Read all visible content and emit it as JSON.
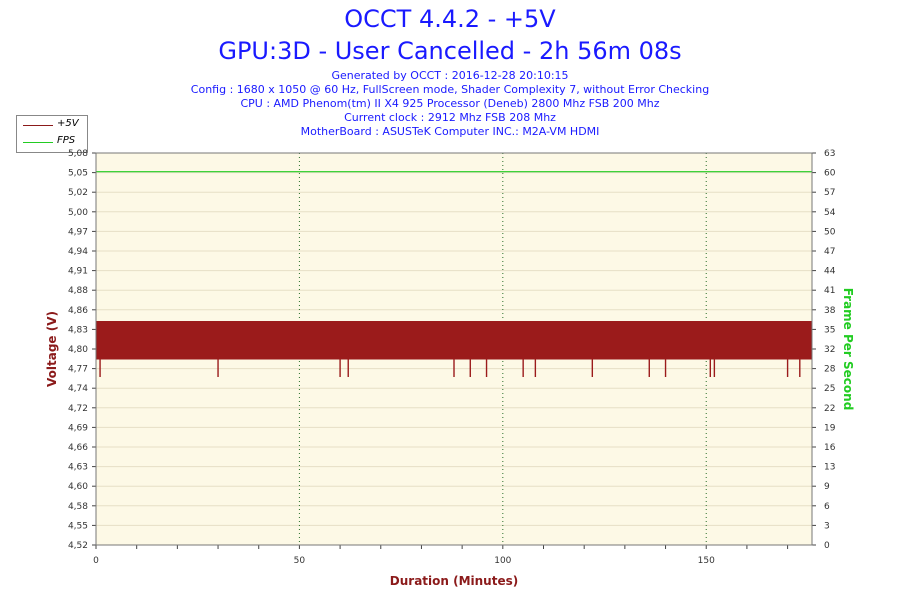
{
  "title": "OCCT 4.4.2 - +5V",
  "subtitle": "GPU:3D - User Cancelled - 2h 56m 08s",
  "info_lines": [
    "Generated by OCCT : 2016-12-28 20:10:15",
    "Config : 1680 x 1050 @ 60 Hz, FullScreen mode, Shader Complexity 7, without Error Checking",
    "CPU : AMD Phenom(tm) II X4 925 Processor (Deneb) 2800 Mhz FSB 200 Mhz",
    "Current clock : 2912 Mhz FSB 208 Mhz",
    "MotherBoard : ASUSTeK Computer INC.: M2A-VM HDMI"
  ],
  "legend": [
    {
      "label": "+5V",
      "color": "#8b1a1a"
    },
    {
      "label": "FPS",
      "color": "#22cc22"
    }
  ],
  "colors": {
    "plot_bg": "#fdf9e6",
    "voltage": "#9b1b1b",
    "fps": "#22cc22",
    "title": "#1a1aff",
    "ylabel_left": "#8b1a1a",
    "ylabel_right": "#22cc22",
    "xlabel": "#8b1a1a"
  },
  "chart_data": {
    "type": "area",
    "xlabel": "Duration (Minutes)",
    "ylabel": "Voltage (V)",
    "y2label": "Frame Per Second",
    "xlim": [
      0,
      176
    ],
    "ylim": [
      4.52,
      5.08
    ],
    "y2lim": [
      0,
      63
    ],
    "x_ticks": [
      0,
      50,
      100,
      150
    ],
    "y_ticks": [
      "5,08",
      "5,05",
      "5,02",
      "5,00",
      "4,97",
      "4,94",
      "4,91",
      "4,88",
      "4,86",
      "4,83",
      "4,80",
      "4,77",
      "4,74",
      "4,72",
      "4,69",
      "4,66",
      "4,63",
      "4,60",
      "4,58",
      "4,55",
      "4,52"
    ],
    "y2_ticks": [
      "63",
      "60",
      "57",
      "54",
      "50",
      "47",
      "44",
      "41",
      "38",
      "35",
      "32",
      "28",
      "25",
      "22",
      "19",
      "16",
      "13",
      "9",
      "6",
      "3",
      "0"
    ],
    "grid": true,
    "legend_position": "top-left",
    "series": [
      {
        "name": "+5V",
        "axis": "left",
        "band_min": 4.785,
        "band_max": 4.84,
        "dips_x": [
          1,
          30,
          60,
          62,
          88,
          92,
          96,
          105,
          108,
          122,
          136,
          140,
          151,
          152,
          170,
          173
        ],
        "dip_min": 4.76
      },
      {
        "name": "FPS",
        "axis": "right",
        "x": [
          0,
          176
        ],
        "values": [
          60,
          60
        ]
      }
    ]
  }
}
